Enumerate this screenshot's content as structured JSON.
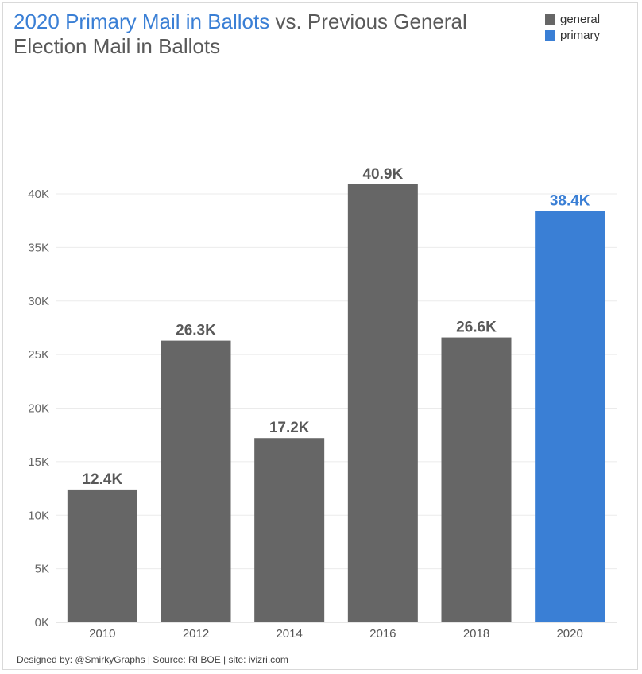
{
  "title": {
    "highlight": "2020 Primary Mail in Ballots",
    "rest": " vs. Previous General Election Mail in Ballots"
  },
  "legend": [
    {
      "label": "general",
      "color": "#666666"
    },
    {
      "label": "primary",
      "color": "#3a7fd5"
    }
  ],
  "footer": "Designed by: @SmirkyGraphs  |  Source: RI BOE  |  site: ivizri.com",
  "chart_data": {
    "type": "bar",
    "title": "2020 Primary Mail in Ballots vs. Previous General Election Mail in Ballots",
    "xlabel": "",
    "ylabel": "",
    "categories": [
      "2010",
      "2012",
      "2014",
      "2016",
      "2018",
      "2020"
    ],
    "values": [
      12400,
      26300,
      17200,
      40900,
      26600,
      38400
    ],
    "data_labels": [
      "12.4K",
      "26.3K",
      "17.2K",
      "40.9K",
      "26.6K",
      "38.4K"
    ],
    "series_type": [
      "general",
      "general",
      "general",
      "general",
      "general",
      "primary"
    ],
    "colors": {
      "general": "#666666",
      "primary": "#3a7fd5"
    },
    "ylim": [
      0,
      40000
    ],
    "yticks": [
      0,
      5000,
      10000,
      15000,
      20000,
      25000,
      30000,
      35000,
      40000
    ],
    "ytick_labels": [
      "0K",
      "5K",
      "10K",
      "15K",
      "20K",
      "25K",
      "30K",
      "35K",
      "40K"
    ],
    "grid": true,
    "legend_position": "top-right"
  }
}
